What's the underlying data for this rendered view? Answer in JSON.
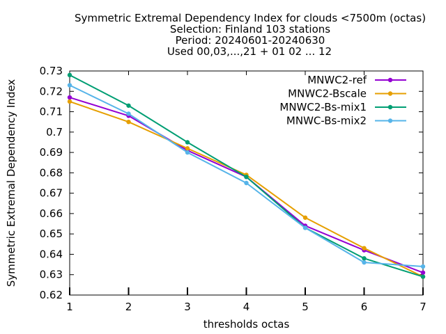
{
  "chart_data": {
    "type": "line",
    "title_lines": [
      "Symmetric Extremal Dependency Index  for clouds <7500m (octas)",
      "Selection: Finland    103 stations",
      "Period: 20240601-20240630",
      "Used 00,03,...,21 + 01 02 ... 12"
    ],
    "xlabel": "thresholds octas",
    "ylabel": "Symmetric Extremal Dependency Index",
    "x": [
      1,
      2,
      3,
      4,
      5,
      6,
      7
    ],
    "xlim": [
      1,
      7
    ],
    "ylim": [
      0.62,
      0.73
    ],
    "yticks": [
      0.62,
      0.63,
      0.64,
      0.65,
      0.66,
      0.67,
      0.68,
      0.69,
      0.7,
      0.71,
      0.72,
      0.73
    ],
    "ytick_labels": [
      "0.62",
      "0.63",
      "0.64",
      "0.65",
      "0.66",
      "0.67",
      "0.68",
      "0.69",
      "0.7",
      "0.71",
      "0.72",
      "0.73"
    ],
    "xtick_labels": [
      "1",
      "2",
      "3",
      "4",
      "5",
      "6",
      "7"
    ],
    "legend_position": "top-right",
    "grid": false,
    "series": [
      {
        "name": "MNWC2-ref",
        "color": "#9400d3",
        "values": [
          0.717,
          0.708,
          0.691,
          0.678,
          0.654,
          0.642,
          0.631
        ]
      },
      {
        "name": "MNWC2-Bscale",
        "color": "#e69f00",
        "values": [
          0.715,
          0.705,
          0.692,
          0.679,
          0.658,
          0.643,
          0.629
        ]
      },
      {
        "name": "MNWC2-Bs-mix1",
        "color": "#009e73",
        "values": [
          0.728,
          0.713,
          0.695,
          0.678,
          0.653,
          0.638,
          0.629
        ]
      },
      {
        "name": "MNWC-Bs-mix2",
        "color": "#56b4e9",
        "values": [
          0.723,
          0.709,
          0.69,
          0.675,
          0.653,
          0.636,
          0.634
        ]
      }
    ]
  }
}
